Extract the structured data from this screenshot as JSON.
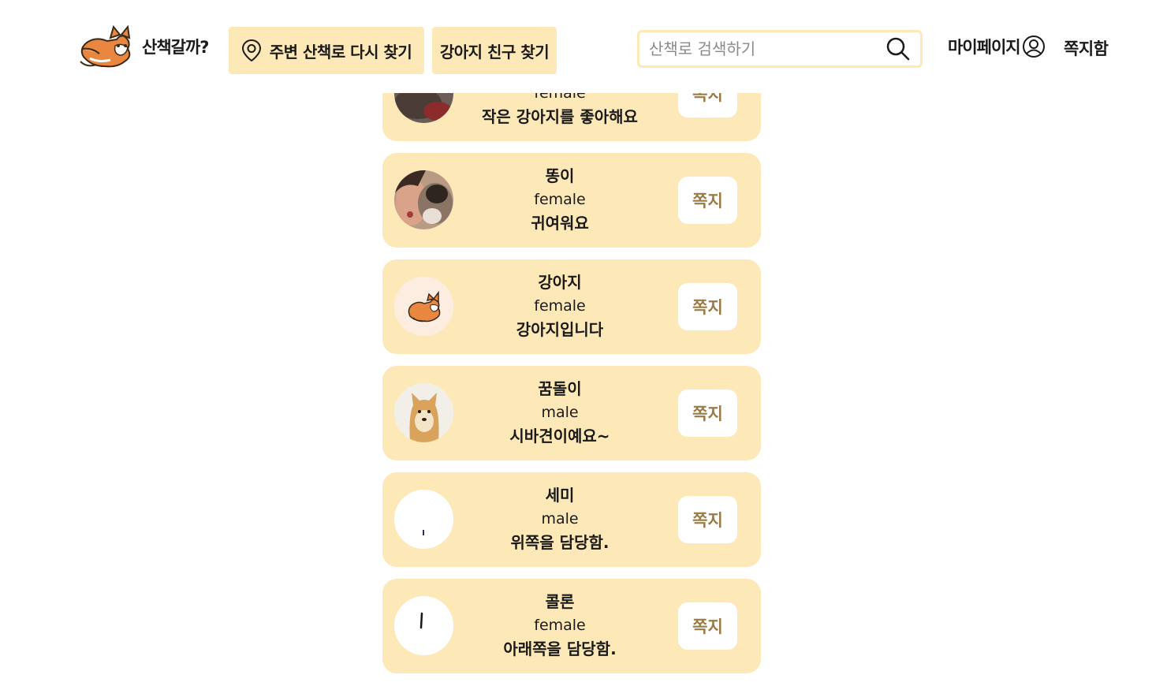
{
  "header": {
    "logo_text": "산책갈까?",
    "nav_walk_label": "주변 산책로 다시 찾기",
    "nav_friend_label": "강아지 친구 찾기",
    "search_placeholder": "산책로 검색하기",
    "mypage_label": "마이페이지",
    "messagebox_label": "쪽지함"
  },
  "colors": {
    "card_bg": "#fde8b8",
    "button_text": "#9a7a45",
    "nav_bg": "#fde8b8"
  },
  "dogs": [
    {
      "name": "",
      "gender": "female",
      "intro": "작은 강아지를 좋아해요",
      "button": "쪽지",
      "avatar": "dark-photo"
    },
    {
      "name": "똥이",
      "gender": "female",
      "intro": "귀여워요",
      "button": "쪽지",
      "avatar": "person-with-dog-photo"
    },
    {
      "name": "강아지",
      "gender": "female",
      "intro": "강아지입니다",
      "button": "쪽지",
      "avatar": "shiba-logo"
    },
    {
      "name": "꿈돌이",
      "gender": "male",
      "intro": "시바견이예요~",
      "button": "쪽지",
      "avatar": "shiba-photo"
    },
    {
      "name": "세미",
      "gender": "male",
      "intro": "위쪽을 담당함.",
      "button": "쪽지",
      "avatar": "blank-dot"
    },
    {
      "name": "콜론",
      "gender": "female",
      "intro": "아래쪽을 담당함.",
      "button": "쪽지",
      "avatar": "blank-line"
    }
  ]
}
